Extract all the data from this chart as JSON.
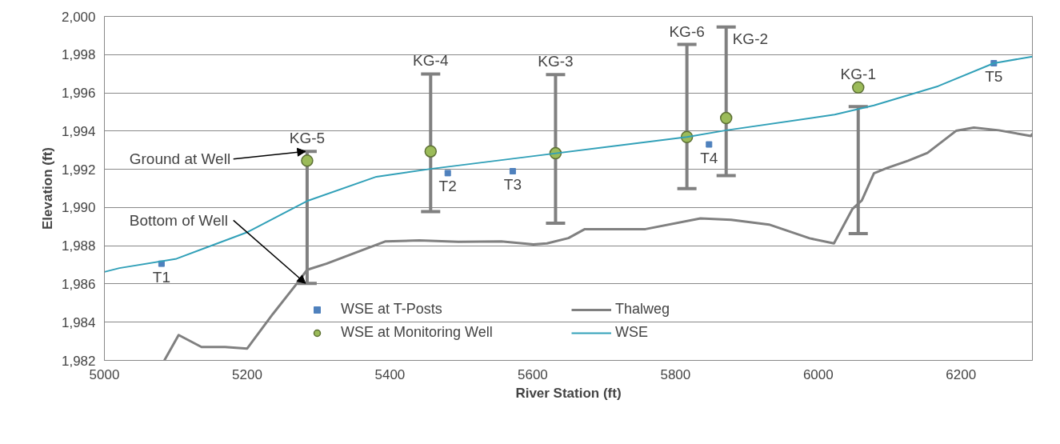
{
  "chart_data": {
    "type": "scatter",
    "xlabel": "River Station (ft)",
    "ylabel": "Elevation (ft)",
    "xlim": [
      5000,
      6300
    ],
    "xticks": [
      5000,
      5200,
      5400,
      5600,
      5800,
      6000,
      6200
    ],
    "ylim": [
      1982,
      2000
    ],
    "yticks": [
      {
        "value": 1982,
        "label": "1,982"
      },
      {
        "value": 1984,
        "label": "1,984"
      },
      {
        "value": 1986,
        "label": "1,986"
      },
      {
        "value": 1988,
        "label": "1,988"
      },
      {
        "value": 1990,
        "label": "1,990"
      },
      {
        "value": 1992,
        "label": "1,992"
      },
      {
        "value": 1994,
        "label": "1,994"
      },
      {
        "value": 1996,
        "label": "1,996"
      },
      {
        "value": 1998,
        "label": "1,998"
      },
      {
        "value": 2000,
        "label": "2,000"
      }
    ],
    "grid": "y",
    "legend": "bottom",
    "series": [
      {
        "name": "WSE at T-Posts",
        "type": "scatter",
        "marker": "square",
        "color": "#4f81bd",
        "x": [
          5080,
          5481,
          5572,
          5847,
          6246
        ],
        "values": [
          1987.06,
          1991.8,
          1991.9,
          1993.3,
          1997.55
        ],
        "value_labels": [
          "T1",
          "T2",
          "T3",
          "T4",
          "T5"
        ]
      },
      {
        "name": "WSE at Monitoring Well",
        "marker": "circle",
        "color": "#9bbb59",
        "x": [
          5284,
          5457,
          5632,
          5816,
          5871,
          6056
        ],
        "values": [
          1992.45,
          1992.94,
          1992.84,
          1993.69,
          1994.68,
          1996.28
        ],
        "errors": [
          [
            1986.03,
            1992.94
          ],
          [
            1989.79,
            1996.99
          ],
          [
            1989.18,
            1996.95
          ],
          [
            1990.99,
            1998.53
          ],
          [
            1991.67,
            1999.45
          ],
          [
            1988.63,
            1995.28
          ]
        ]
      },
      {
        "name": "Thalweg",
        "type": "line",
        "color": "#808080",
        "x": [
          5084,
          5104,
          5136,
          5169,
          5200,
          5236,
          5269,
          5284,
          5311,
          5394,
          5441,
          5496,
          5556,
          5601,
          5620,
          5650,
          5673,
          5758,
          5835,
          5878,
          5931,
          5988,
          6022,
          6048,
          6061,
          6078,
          6096,
          6126,
          6153,
          6193,
          6218,
          6253,
          6298,
          6300
        ],
        "values": [
          1982.0,
          1983.33,
          1982.7,
          1982.7,
          1982.62,
          1984.43,
          1985.99,
          1986.74,
          1987.06,
          1988.23,
          1988.28,
          1988.21,
          1988.23,
          1988.07,
          1988.12,
          1988.4,
          1988.87,
          1988.87,
          1989.43,
          1989.36,
          1989.11,
          1988.39,
          1988.12,
          1989.93,
          1990.37,
          1991.79,
          1992.06,
          1992.45,
          1992.86,
          1994.01,
          1994.18,
          1994.04,
          1993.74,
          1993.87
        ]
      },
      {
        "name": "WSE",
        "type": "line",
        "color": "#31a0b8",
        "x": [
          5000,
          5021,
          5101,
          5201,
          5284,
          5381,
          5457,
          5601,
          5816,
          5871,
          6023,
          6078,
          6168,
          6246,
          6300
        ],
        "values": [
          1986.63,
          1986.83,
          1987.32,
          1988.72,
          1990.34,
          1991.61,
          1992.02,
          1992.69,
          1993.69,
          1994.04,
          1994.86,
          1995.34,
          1996.35,
          1997.55,
          1997.9
        ]
      }
    ],
    "annotations": [
      {
        "text": "Ground at Well",
        "x": 5284,
        "y": 1992.94
      },
      {
        "text": "Bottom of Well",
        "x": 5284,
        "y": 1986.03
      },
      {
        "text": "KG-5",
        "x": 5284,
        "y": 1992.94
      },
      {
        "text": "KG-4",
        "x": 5457,
        "y": 1996.99
      },
      {
        "text": "KG-3",
        "x": 5632,
        "y": 1996.95
      },
      {
        "text": "KG-6",
        "x": 5816,
        "y": 1998.53
      },
      {
        "text": "KG-2",
        "x": 5871,
        "y": 1999.45
      },
      {
        "text": "KG-1",
        "x": 6056,
        "y": 1996.28
      }
    ]
  }
}
